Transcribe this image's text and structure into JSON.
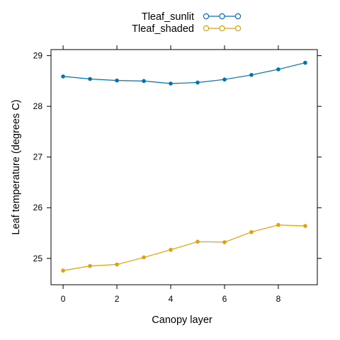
{
  "chart_data": {
    "type": "line",
    "title": "",
    "xlabel": "Canopy layer",
    "ylabel": "Leaf temperature (degrees C)",
    "xlim": [
      -0.45,
      9.45
    ],
    "ylim": [
      24.48,
      29.12
    ],
    "x": [
      0,
      1,
      2,
      3,
      4,
      5,
      6,
      7,
      8,
      9
    ],
    "xticks": [
      0,
      2,
      4,
      6,
      8
    ],
    "yticks": [
      25,
      26,
      27,
      28,
      29
    ],
    "grid": false,
    "legend_position": "top",
    "series": [
      {
        "name": "Tleaf_sunlit",
        "color": "#0072b2",
        "marker": "circle",
        "values": [
          28.59,
          28.54,
          28.51,
          28.5,
          28.45,
          28.47,
          28.53,
          28.62,
          28.73,
          28.86
        ]
      },
      {
        "name": "Tleaf_shaded",
        "color": "#e69f00",
        "marker": "circle",
        "values": [
          24.76,
          24.85,
          24.88,
          25.02,
          25.17,
          25.33,
          25.32,
          25.52,
          25.66,
          25.64
        ]
      }
    ]
  }
}
